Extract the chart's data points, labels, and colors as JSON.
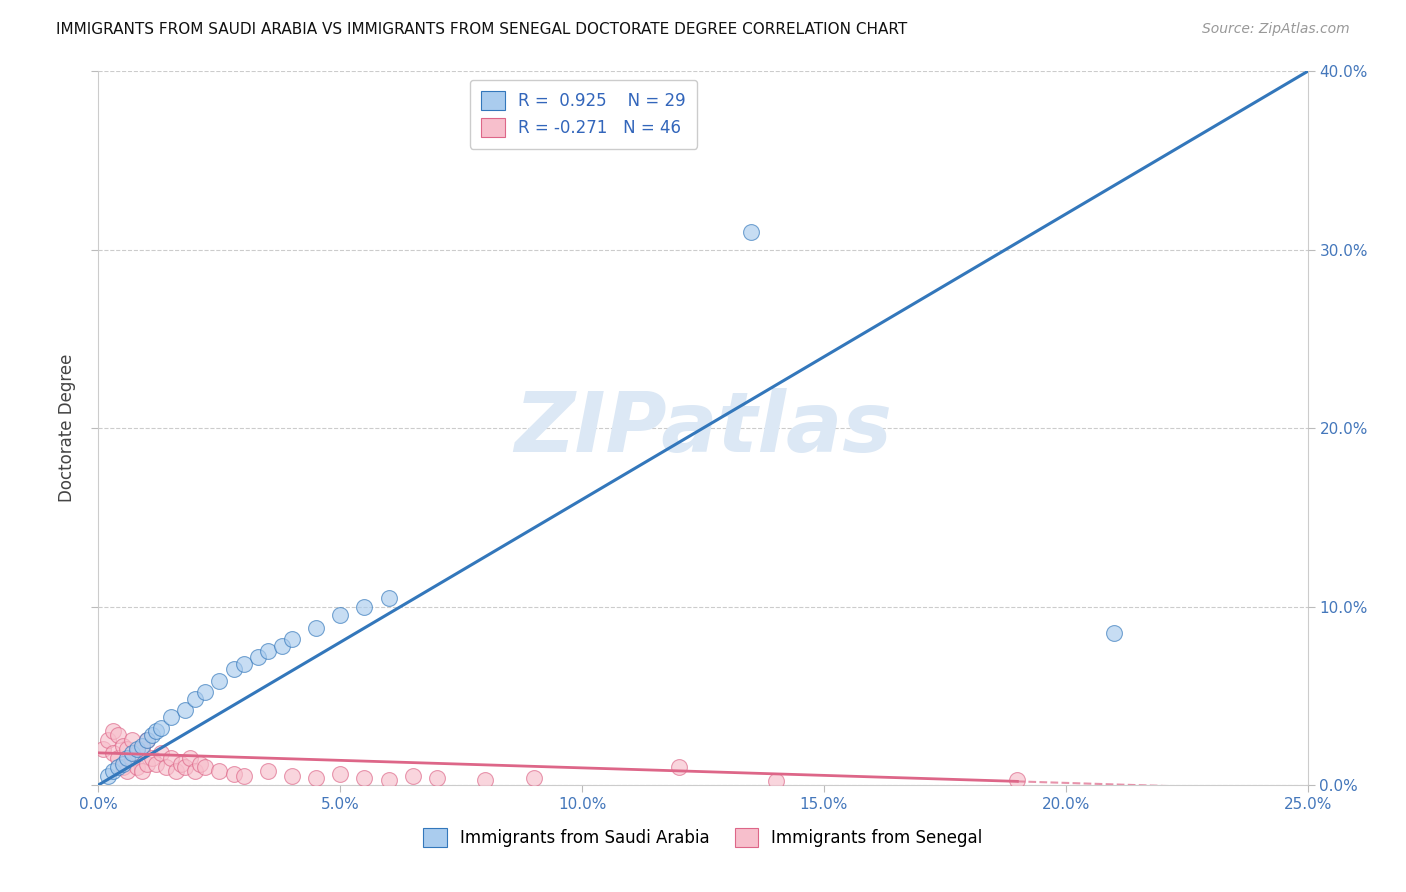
{
  "title": "IMMIGRANTS FROM SAUDI ARABIA VS IMMIGRANTS FROM SENEGAL DOCTORATE DEGREE CORRELATION CHART",
  "source": "Source: ZipAtlas.com",
  "ylabel": "Doctorate Degree",
  "xlim": [
    0.0,
    0.25
  ],
  "ylim": [
    0.0,
    0.4
  ],
  "xticks": [
    0.0,
    0.05,
    0.1,
    0.15,
    0.2,
    0.25
  ],
  "yticks": [
    0.0,
    0.1,
    0.2,
    0.3,
    0.4
  ],
  "ytick_labels_right": [
    "0.0%",
    "10.0%",
    "20.0%",
    "30.0%",
    "40.0%"
  ],
  "xtick_labels": [
    "0.0%",
    "5.0%",
    "10.0%",
    "15.0%",
    "20.0%",
    "25.0%"
  ],
  "R_saudi": 0.925,
  "N_saudi": 29,
  "R_senegal": -0.271,
  "N_senegal": 46,
  "color_saudi": "#aaccee",
  "color_senegal": "#f7bfcc",
  "line_color_saudi": "#3377bb",
  "line_color_senegal": "#dd6688",
  "watermark": "ZIPatlas",
  "watermark_color": "#dce8f5",
  "legend_label_saudi": "Immigrants from Saudi Arabia",
  "legend_label_senegal": "Immigrants from Senegal",
  "saudi_x": [
    0.002,
    0.003,
    0.004,
    0.005,
    0.006,
    0.007,
    0.008,
    0.009,
    0.01,
    0.011,
    0.012,
    0.013,
    0.015,
    0.018,
    0.02,
    0.022,
    0.025,
    0.028,
    0.03,
    0.033,
    0.035,
    0.038,
    0.04,
    0.045,
    0.05,
    0.055,
    0.06,
    0.135,
    0.21
  ],
  "saudi_y": [
    0.005,
    0.008,
    0.01,
    0.012,
    0.015,
    0.018,
    0.02,
    0.022,
    0.025,
    0.028,
    0.03,
    0.032,
    0.038,
    0.042,
    0.048,
    0.052,
    0.058,
    0.065,
    0.068,
    0.072,
    0.075,
    0.078,
    0.082,
    0.088,
    0.095,
    0.1,
    0.105,
    0.31,
    0.085
  ],
  "senegal_x": [
    0.001,
    0.002,
    0.003,
    0.003,
    0.004,
    0.004,
    0.005,
    0.005,
    0.006,
    0.006,
    0.007,
    0.007,
    0.008,
    0.008,
    0.009,
    0.009,
    0.01,
    0.01,
    0.011,
    0.012,
    0.013,
    0.014,
    0.015,
    0.016,
    0.017,
    0.018,
    0.019,
    0.02,
    0.021,
    0.022,
    0.025,
    0.028,
    0.03,
    0.035,
    0.04,
    0.045,
    0.05,
    0.055,
    0.06,
    0.065,
    0.07,
    0.08,
    0.09,
    0.12,
    0.14,
    0.19
  ],
  "senegal_y": [
    0.02,
    0.025,
    0.018,
    0.03,
    0.015,
    0.028,
    0.01,
    0.022,
    0.008,
    0.02,
    0.015,
    0.025,
    0.01,
    0.018,
    0.008,
    0.02,
    0.012,
    0.025,
    0.015,
    0.012,
    0.018,
    0.01,
    0.015,
    0.008,
    0.012,
    0.01,
    0.015,
    0.008,
    0.012,
    0.01,
    0.008,
    0.006,
    0.005,
    0.008,
    0.005,
    0.004,
    0.006,
    0.004,
    0.003,
    0.005,
    0.004,
    0.003,
    0.004,
    0.01,
    0.002,
    0.003
  ],
  "background_color": "#ffffff",
  "grid_color": "#cccccc",
  "saudi_trend_x": [
    0.0,
    0.25
  ],
  "saudi_trend_y": [
    0.0,
    0.4
  ],
  "senegal_trend_x0": 0.0,
  "senegal_trend_x1": 0.19,
  "senegal_trend_y0": 0.018,
  "senegal_trend_y1": 0.002
}
